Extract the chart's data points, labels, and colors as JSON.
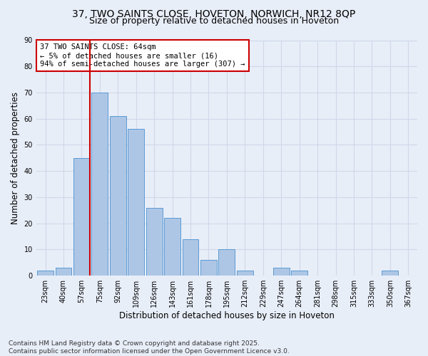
{
  "title1": "37, TWO SAINTS CLOSE, HOVETON, NORWICH, NR12 8QP",
  "title2": "Size of property relative to detached houses in Hoveton",
  "xlabel": "Distribution of detached houses by size in Hoveton",
  "ylabel": "Number of detached properties",
  "categories": [
    "23sqm",
    "40sqm",
    "57sqm",
    "75sqm",
    "92sqm",
    "109sqm",
    "126sqm",
    "143sqm",
    "161sqm",
    "178sqm",
    "195sqm",
    "212sqm",
    "229sqm",
    "247sqm",
    "264sqm",
    "281sqm",
    "298sqm",
    "315sqm",
    "333sqm",
    "350sqm",
    "367sqm"
  ],
  "values": [
    2,
    3,
    45,
    70,
    61,
    56,
    26,
    22,
    14,
    6,
    10,
    2,
    0,
    3,
    2,
    0,
    0,
    0,
    0,
    2,
    0
  ],
  "bar_color": "#adc6e5",
  "bar_edge_color": "#5b9bd5",
  "red_line_bar_index": 2,
  "annotation_text": "37 TWO SAINTS CLOSE: 64sqm\n← 5% of detached houses are smaller (16)\n94% of semi-detached houses are larger (307) →",
  "annotation_box_color": "#ffffff",
  "annotation_box_edge_color": "#cc0000",
  "ylim": [
    0,
    90
  ],
  "yticks": [
    0,
    10,
    20,
    30,
    40,
    50,
    60,
    70,
    80,
    90
  ],
  "grid_color": "#d0d8e8",
  "background_color": "#e8eef8",
  "fig_background_color": "#e8eef8",
  "footer_text": "Contains HM Land Registry data © Crown copyright and database right 2025.\nContains public sector information licensed under the Open Government Licence v3.0.",
  "title_fontsize": 10,
  "subtitle_fontsize": 9,
  "axis_label_fontsize": 8.5,
  "tick_fontsize": 7,
  "annotation_fontsize": 7.5,
  "footer_fontsize": 6.5
}
